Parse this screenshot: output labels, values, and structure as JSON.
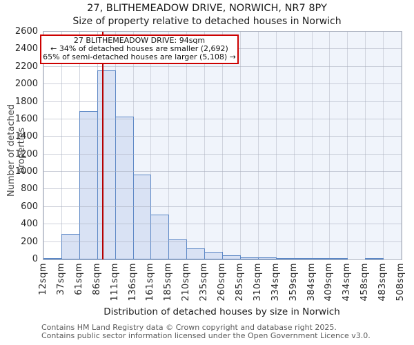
{
  "title": "27, BLITHEMEADOW DRIVE, NORWICH, NR7 8PY",
  "subtitle": "Size of property relative to detached houses in Norwich",
  "annotation": {
    "line1": "27 BLITHEMEADOW DRIVE: 94sqm",
    "line2": "← 34% of detached houses are smaller (2,692)",
    "line3": "65% of semi-detached houses are larger (5,108) →"
  },
  "footer": {
    "line1": "Contains HM Land Registry data © Crown copyright and database right 2025.",
    "line2": "Contains public sector information licensed under the Open Government Licence v3.0."
  },
  "chart_data": {
    "type": "bar",
    "title": "Size of property relative to detached houses in Norwich",
    "xlabel": "Distribution of detached houses by size in Norwich",
    "ylabel": "Number of detached properties",
    "categories": [
      "12sqm",
      "37sqm",
      "61sqm",
      "86sqm",
      "111sqm",
      "136sqm",
      "161sqm",
      "185sqm",
      "210sqm",
      "235sqm",
      "260sqm",
      "285sqm",
      "310sqm",
      "334sqm",
      "359sqm",
      "384sqm",
      "409sqm",
      "434sqm",
      "458sqm",
      "483sqm",
      "508sqm"
    ],
    "bin_edges_sqm": [
      12,
      37,
      61,
      86,
      111,
      136,
      161,
      185,
      210,
      235,
      260,
      285,
      310,
      334,
      359,
      384,
      409,
      434,
      458,
      483,
      508
    ],
    "values": [
      15,
      290,
      1690,
      2160,
      1630,
      970,
      510,
      230,
      125,
      90,
      45,
      20,
      25,
      10,
      15,
      10,
      15,
      0,
      12,
      0
    ],
    "ylim": [
      0,
      2600
    ],
    "yticks": [
      0,
      200,
      400,
      600,
      800,
      1000,
      1200,
      1400,
      1600,
      1800,
      2000,
      2200,
      2400,
      2600
    ],
    "grid": true,
    "legend": "none",
    "marker": {
      "value_sqm": 94,
      "label": "27 BLITHEMEADOW DRIVE: 94sqm"
    },
    "colors": {
      "bar_fill": "#d9e2f4",
      "bar_border": "#5c87c5",
      "marker_line": "#b50000",
      "annotation_border": "#cc0000",
      "shade_bg": "#f0f4fb",
      "grid_line": "#d0d4de",
      "grid_overlay": "rgba(165,172,188,0.55)"
    }
  }
}
